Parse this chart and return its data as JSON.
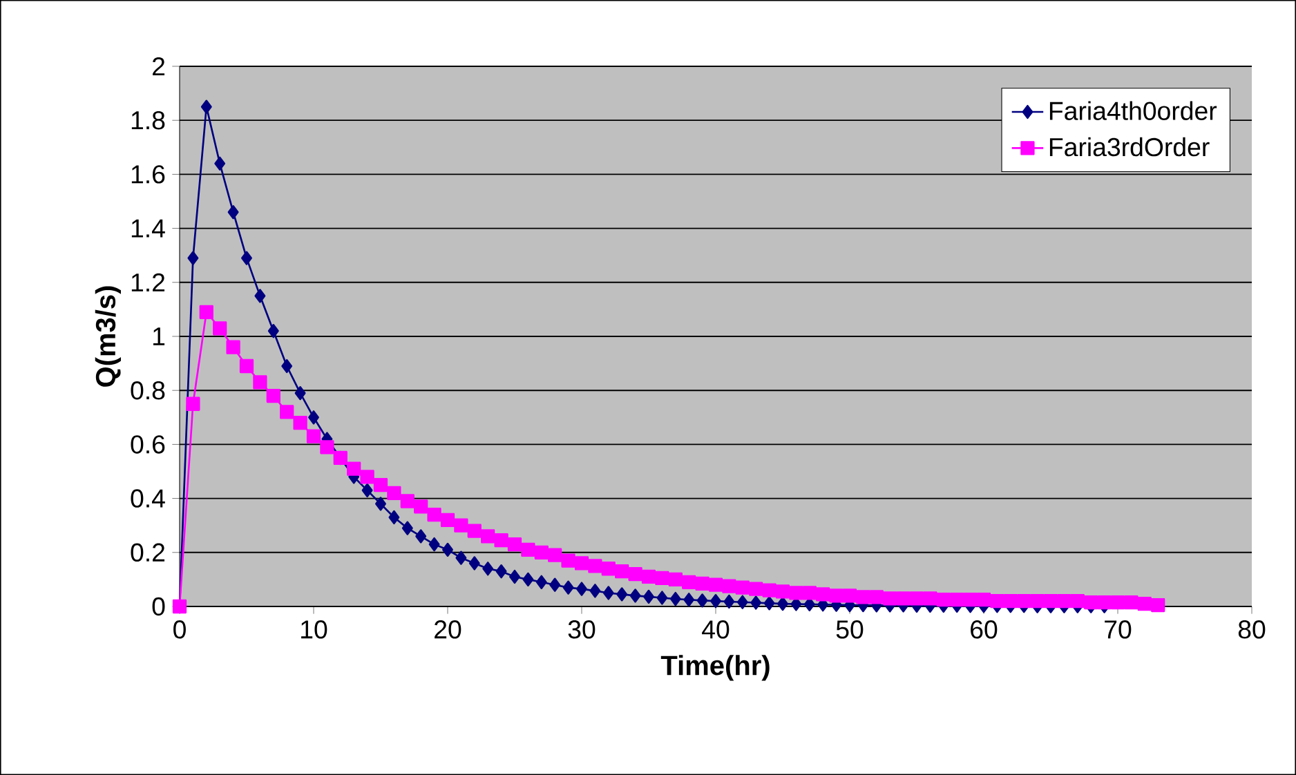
{
  "chart_data": {
    "type": "line",
    "xlabel": "Time(hr)",
    "ylabel": "Q(m3/s)",
    "x": [
      0,
      1,
      2,
      3,
      4,
      5,
      6,
      7,
      8,
      9,
      10,
      11,
      12,
      13,
      14,
      15,
      16,
      17,
      18,
      19,
      20,
      21,
      22,
      23,
      24,
      25,
      26,
      27,
      28,
      29,
      30,
      31,
      32,
      33,
      34,
      35,
      36,
      37,
      38,
      39,
      40,
      41,
      42,
      43,
      44,
      45,
      46,
      47,
      48,
      49,
      50,
      51,
      52,
      53,
      54,
      55,
      56,
      57,
      58,
      59,
      60,
      61,
      62,
      63,
      64,
      65,
      66,
      67,
      68,
      69,
      70,
      71,
      72,
      73
    ],
    "series": [
      {
        "name": "Faria4th0order",
        "color": "#000080",
        "marker": "diamond",
        "values": [
          0,
          1.29,
          1.85,
          1.64,
          1.46,
          1.29,
          1.15,
          1.02,
          0.89,
          0.79,
          0.7,
          0.62,
          0.55,
          0.48,
          0.43,
          0.38,
          0.33,
          0.29,
          0.26,
          0.23,
          0.21,
          0.18,
          0.16,
          0.14,
          0.13,
          0.11,
          0.1,
          0.09,
          0.08,
          0.07,
          0.065,
          0.058,
          0.05,
          0.045,
          0.04,
          0.036,
          0.032,
          0.028,
          0.025,
          0.022,
          0.02,
          0.018,
          0.016,
          0.014,
          0.012,
          0.01,
          0.009,
          0.008,
          0.007,
          0.006,
          0.005,
          0.005,
          0.004,
          0.004,
          0.004,
          0.003,
          0.003,
          0.003,
          0.003,
          0.002,
          0.002,
          0.002,
          0.002,
          0.002,
          0.001,
          0.001,
          0.001,
          0.001,
          0.001,
          0.001,
          null,
          null,
          null,
          null
        ]
      },
      {
        "name": "Faria3rdOrder",
        "color": "#ff00ff",
        "marker": "square",
        "values": [
          0,
          0.75,
          1.09,
          1.03,
          0.96,
          0.89,
          0.83,
          0.78,
          0.72,
          0.68,
          0.63,
          0.59,
          0.55,
          0.51,
          0.48,
          0.45,
          0.42,
          0.39,
          0.37,
          0.34,
          0.32,
          0.3,
          0.28,
          0.26,
          0.245,
          0.23,
          0.21,
          0.2,
          0.19,
          0.17,
          0.16,
          0.15,
          0.14,
          0.13,
          0.12,
          0.11,
          0.105,
          0.1,
          0.09,
          0.085,
          0.08,
          0.075,
          0.07,
          0.065,
          0.06,
          0.055,
          0.05,
          0.05,
          0.045,
          0.04,
          0.04,
          0.035,
          0.035,
          0.03,
          0.03,
          0.03,
          0.03,
          0.025,
          0.025,
          0.025,
          0.025,
          0.02,
          0.02,
          0.02,
          0.02,
          0.02,
          0.02,
          0.02,
          0.015,
          0.015,
          0.015,
          0.015,
          0.01,
          0.005
        ]
      }
    ],
    "xlim": [
      0,
      80
    ],
    "xticks": [
      0,
      10,
      20,
      30,
      40,
      50,
      60,
      70,
      80
    ],
    "ylim": [
      0,
      2
    ],
    "yticks": [
      0,
      0.2,
      0.4,
      0.6,
      0.8,
      1,
      1.2,
      1.4,
      1.6,
      1.8,
      2
    ],
    "grid": "y",
    "legend": "top right"
  }
}
